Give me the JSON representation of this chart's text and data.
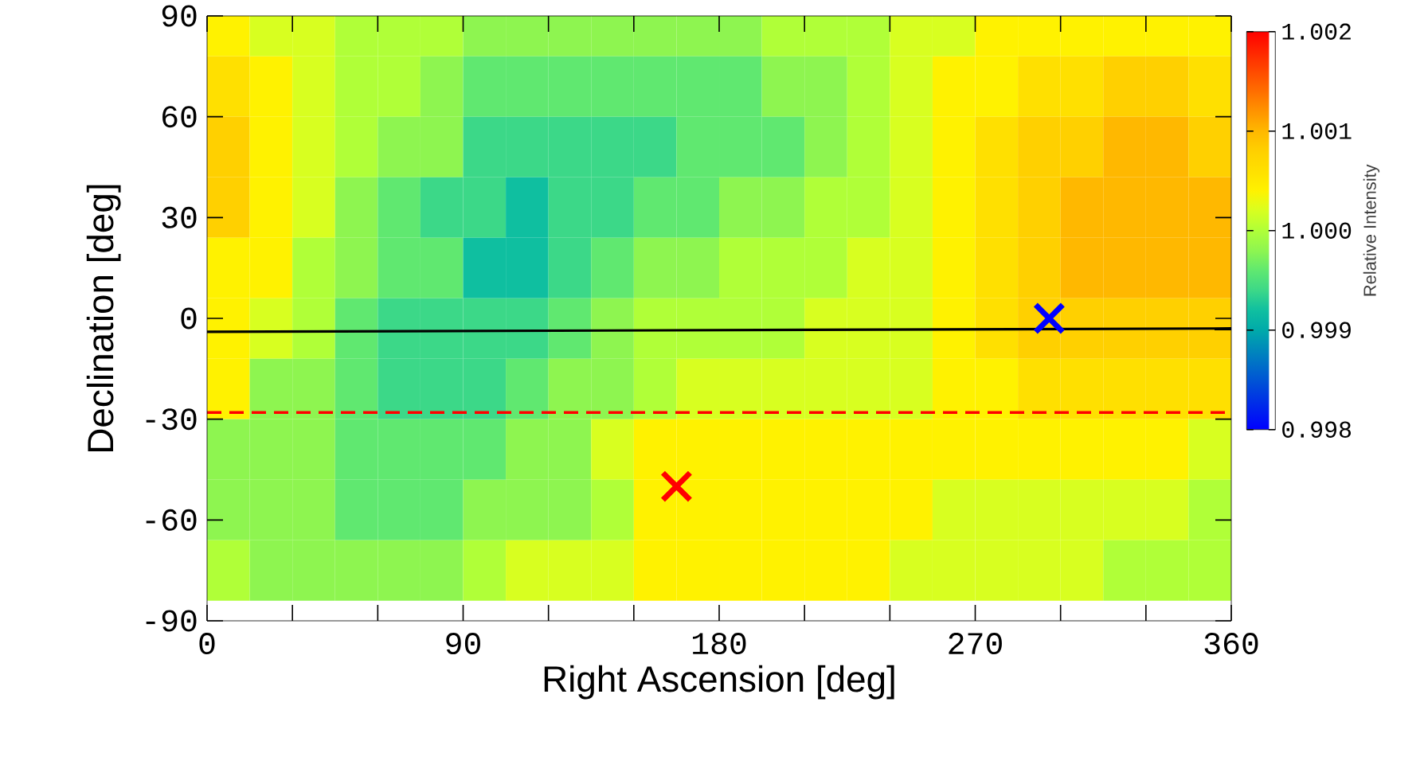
{
  "chart_data": {
    "type": "heatmap",
    "xlabel": "Right Ascension  [deg]",
    "ylabel": "Declination [deg]",
    "clabel": "Relative Intensity",
    "x": [
      7.5,
      22.5,
      37.5,
      52.5,
      67.5,
      82.5,
      97.5,
      112.5,
      127.5,
      142.5,
      157.5,
      172.5,
      187.5,
      202.5,
      217.5,
      232.5,
      247.5,
      262.5,
      277.5,
      292.5,
      307.5,
      322.5,
      337.5,
      352.5
    ],
    "y": [
      87,
      69,
      51,
      33,
      15,
      -3,
      -21,
      -39,
      -57,
      -75
    ],
    "xlim": [
      0,
      360
    ],
    "ylim": [
      -90,
      90
    ],
    "xticks": [
      0,
      {
        "value": 30,
        "label": null
      },
      {
        "value": 60,
        "label": null
      },
      90,
      {
        "value": 120,
        "label": null
      },
      {
        "value": 150,
        "label": null
      },
      180,
      {
        "value": 210,
        "label": null
      },
      {
        "value": 240,
        "label": null
      },
      270,
      {
        "value": 300,
        "label": null
      },
      {
        "value": 330,
        "label": null
      },
      360
    ],
    "yticks": [
      -90,
      -60,
      -30,
      0,
      30,
      60,
      90
    ],
    "clim": [
      0.998,
      1.002
    ],
    "cticks": [
      0.998,
      0.999,
      {
        "value": 1.0,
        "label": "1.000"
      },
      1.001,
      1.002
    ],
    "cells": [
      [
        1.0004,
        1.0002,
        1.0002,
        1.0,
        1.0,
        1.0,
        0.9998,
        0.9998,
        0.9998,
        0.9998,
        0.9998,
        0.9998,
        0.9998,
        1.0,
        1.0,
        1.0,
        1.0002,
        1.0002,
        1.0004,
        1.0004,
        1.0004,
        1.0004,
        1.0004,
        1.0004
      ],
      [
        1.0006,
        1.0004,
        1.0002,
        1.0,
        1.0,
        0.9998,
        0.9996,
        0.9996,
        0.9996,
        0.9996,
        0.9996,
        0.9996,
        0.9996,
        0.9998,
        0.9998,
        1.0,
        1.0002,
        1.0004,
        1.0004,
        1.0006,
        1.0006,
        1.0008,
        1.0008,
        1.0006
      ],
      [
        1.0008,
        1.0004,
        1.0002,
        1.0,
        0.9998,
        0.9998,
        0.9994,
        0.9994,
        0.9994,
        0.9994,
        0.9994,
        0.9996,
        0.9996,
        0.9996,
        0.9998,
        1.0,
        1.0002,
        1.0004,
        1.0006,
        1.0008,
        1.0008,
        1.001,
        1.001,
        1.0008
      ],
      [
        1.0008,
        1.0004,
        1.0002,
        0.9998,
        0.9996,
        0.9994,
        0.9994,
        0.9992,
        0.9994,
        0.9994,
        0.9996,
        0.9996,
        0.9998,
        0.9998,
        1.0,
        1.0,
        1.0002,
        1.0004,
        1.0006,
        1.0008,
        1.001,
        1.001,
        1.001,
        1.001
      ],
      [
        1.0004,
        1.0004,
        1.0,
        0.9998,
        0.9996,
        0.9996,
        0.9992,
        0.9992,
        0.9994,
        0.9996,
        0.9998,
        0.9998,
        1.0,
        1.0,
        1.0,
        1.0002,
        1.0002,
        1.0004,
        1.0006,
        1.0008,
        1.001,
        1.001,
        1.001,
        1.001
      ],
      [
        1.0004,
        1.0002,
        1.0,
        0.9996,
        0.9994,
        0.9994,
        0.9994,
        0.9994,
        0.9996,
        0.9998,
        1.0,
        1.0,
        1.0,
        1.0,
        1.0002,
        1.0002,
        1.0002,
        1.0004,
        1.0006,
        1.0008,
        1.0008,
        1.0008,
        1.0008,
        1.0008
      ],
      [
        1.0004,
        0.9998,
        0.9998,
        0.9996,
        0.9994,
        0.9994,
        0.9994,
        0.9996,
        0.9998,
        0.9998,
        1.0,
        1.0002,
        1.0002,
        1.0002,
        1.0002,
        1.0002,
        1.0002,
        1.0004,
        1.0004,
        1.0006,
        1.0006,
        1.0006,
        1.0006,
        1.0006
      ],
      [
        0.9998,
        0.9998,
        0.9998,
        0.9996,
        0.9996,
        0.9996,
        0.9996,
        0.9998,
        0.9998,
        1.0002,
        1.0004,
        1.0004,
        1.0004,
        1.0004,
        1.0004,
        1.0004,
        1.0004,
        1.0004,
        1.0004,
        1.0004,
        1.0004,
        1.0004,
        1.0004,
        1.0002
      ],
      [
        0.9998,
        0.9998,
        0.9998,
        0.9996,
        0.9996,
        0.9996,
        0.9998,
        0.9998,
        0.9998,
        1.0,
        1.0004,
        1.0004,
        1.0004,
        1.0004,
        1.0004,
        1.0004,
        1.0004,
        1.0002,
        1.0002,
        1.0002,
        1.0002,
        1.0002,
        1.0002,
        1.0
      ],
      [
        1.0,
        0.9998,
        0.9998,
        0.9998,
        0.9998,
        0.9998,
        1.0,
        1.0002,
        1.0002,
        1.0002,
        1.0004,
        1.0004,
        1.0004,
        1.0004,
        1.0004,
        1.0004,
        1.0002,
        1.0002,
        1.0002,
        1.0002,
        1.0002,
        1.0,
        1.0,
        1.0
      ]
    ],
    "series": [
      {
        "type": "line",
        "color": "#000000",
        "x": [
          0,
          360
        ],
        "values": [
          -4,
          -3
        ]
      },
      {
        "type": "scatter",
        "color": "#0000ff",
        "x": [
          296
        ],
        "values": [
          0
        ],
        "marker": "cross"
      },
      {
        "type": "scatter",
        "color": "#ff0000",
        "x": [
          165
        ],
        "values": [
          -50
        ],
        "marker": "cross"
      }
    ],
    "ref_lines": [
      {
        "axis": "y",
        "value": -28,
        "color": "#ff0000",
        "line_style": "dashed"
      }
    ]
  }
}
